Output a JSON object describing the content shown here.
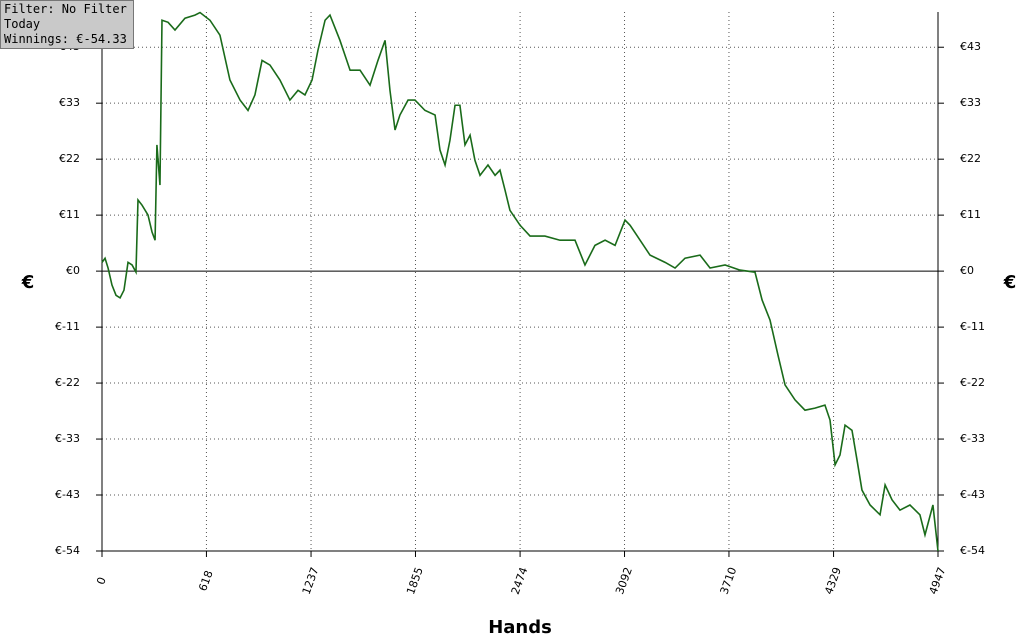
{
  "info": {
    "filter": "Filter: No Filter",
    "period": "Today",
    "winnings": "Winnings: €-54.33"
  },
  "chart_data": {
    "type": "line",
    "xlabel": "Hands",
    "ylabel": "€",
    "xlim": [
      0,
      4947
    ],
    "xticks": [
      0,
      618,
      1237,
      1855,
      2474,
      3092,
      3710,
      4329,
      4947
    ],
    "ylim": [
      -54.33,
      50.3
    ],
    "yticks": [
      {
        "value": -54.33,
        "label": "€-54"
      },
      {
        "value": -43.46,
        "label": "€-43"
      },
      {
        "value": -32.6,
        "label": "€-33"
      },
      {
        "value": -21.73,
        "label": "€-22"
      },
      {
        "value": -10.87,
        "label": "€-11"
      },
      {
        "value": 0,
        "label": "€0"
      },
      {
        "value": 10.87,
        "label": "€11"
      },
      {
        "value": 21.73,
        "label": "€22"
      },
      {
        "value": 32.6,
        "label": "€33"
      },
      {
        "value": 43.46,
        "label": "€43"
      }
    ],
    "grid": true,
    "series": [
      {
        "color": "#1a6b1a",
        "x": [
          0,
          18,
          36,
          59,
          83,
          107,
          130,
          154,
          178,
          201,
          213,
          237,
          272,
          296,
          314,
          325,
          343,
          355,
          391,
          432,
          491,
          550,
          580,
          639,
          698,
          757,
          817,
          864,
          905,
          947,
          994,
          1053,
          1112,
          1160,
          1201,
          1243,
          1278,
          1320,
          1349,
          1408,
          1468,
          1527,
          1586,
          1633,
          1675,
          1704,
          1734,
          1763,
          1811,
          1852,
          1911,
          1971,
          2000,
          2030,
          2059,
          2089,
          2118,
          2148,
          2178,
          2207,
          2237,
          2284,
          2326,
          2355,
          2385,
          2414,
          2474,
          2533,
          2621,
          2710,
          2799,
          2858,
          2917,
          2977,
          3036,
          3095,
          3125,
          3184,
          3243,
          3332,
          3391,
          3450,
          3539,
          3598,
          3687,
          3775,
          3864,
          3906,
          3953,
          4000,
          4042,
          4101,
          4160,
          4219,
          4278,
          4308,
          4338,
          4367,
          4397,
          4438,
          4468,
          4497,
          4545,
          4604,
          4634,
          4675,
          4722,
          4781,
          4840,
          4870,
          4917,
          4947
        ],
        "values": [
          1.7,
          2.5,
          0.6,
          -2.7,
          -4.7,
          -5.2,
          -3.7,
          1.7,
          1.2,
          -0.2,
          13.8,
          12.8,
          10.9,
          7.6,
          6.0,
          24.5,
          16.7,
          48.7,
          48.3,
          46.8,
          49.1,
          49.7,
          50.2,
          48.7,
          45.8,
          37.1,
          33.2,
          31.2,
          34.2,
          40.9,
          40.0,
          37.1,
          33.2,
          35.1,
          34.2,
          37.1,
          42.9,
          48.7,
          49.7,
          44.8,
          39.0,
          39.0,
          36.1,
          40.9,
          44.8,
          35.1,
          27.4,
          30.3,
          33.2,
          33.2,
          31.2,
          30.3,
          23.5,
          20.6,
          25.4,
          32.2,
          32.2,
          24.5,
          26.4,
          21.5,
          18.6,
          20.6,
          18.6,
          19.6,
          15.7,
          11.8,
          8.9,
          6.8,
          6.8,
          6.0,
          6.0,
          1.2,
          5.0,
          6.0,
          5.0,
          9.9,
          8.9,
          6.0,
          3.1,
          1.7,
          0.6,
          2.5,
          3.1,
          0.6,
          1.2,
          0.2,
          -0.2,
          -5.6,
          -9.5,
          -16.3,
          -22.1,
          -25.0,
          -27.0,
          -26.6,
          -26.0,
          -28.9,
          -37.6,
          -35.7,
          -29.9,
          -30.9,
          -36.7,
          -42.5,
          -45.4,
          -47.3,
          -41.5,
          -44.4,
          -46.4,
          -45.4,
          -47.3,
          -51.2,
          -45.4,
          -54.33
        ]
      }
    ]
  }
}
